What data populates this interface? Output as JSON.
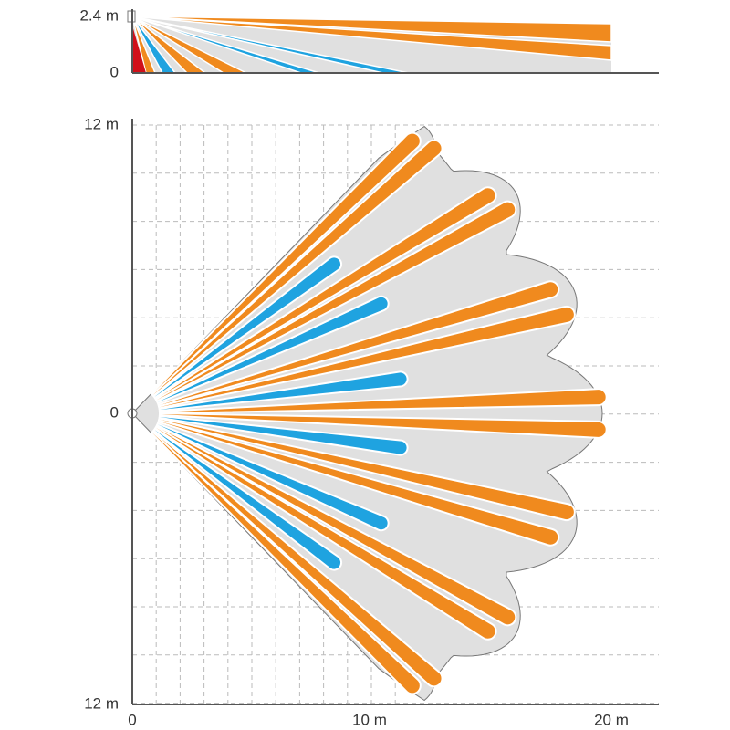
{
  "side_view": {
    "y_labels": [
      "2.4 m",
      "0"
    ]
  },
  "top_view": {
    "y_labels": [
      "12 m",
      "0",
      "12 m"
    ],
    "x_labels": [
      "0",
      "10 m",
      "20 m"
    ]
  }
}
